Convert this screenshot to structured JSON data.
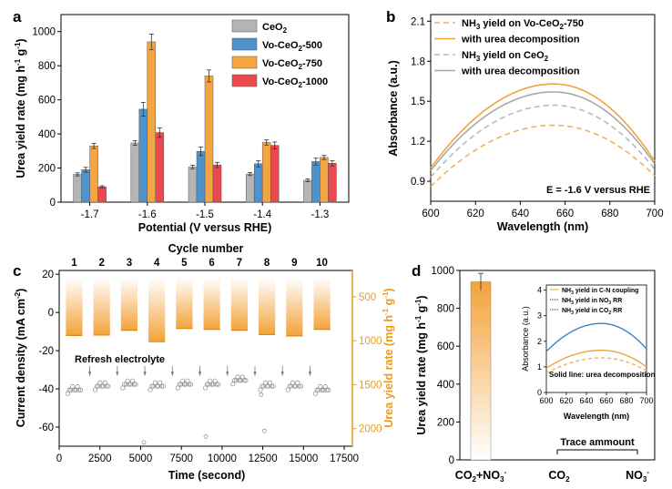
{
  "panels": {
    "a": {
      "letter": "a"
    },
    "b": {
      "letter": "b"
    },
    "c": {
      "letter": "c"
    },
    "d": {
      "letter": "d"
    }
  },
  "colors": {
    "ceo2": "#b5b5b5",
    "vo500": "#4f93cc",
    "vo750": "#f5a442",
    "vo1000": "#ea4a4d",
    "orange": "#f3a33a",
    "orange_dash": "#f0b15f",
    "gray": "#a8a8a8",
    "gray_dash": "#b9b9c4",
    "blue": "#3e82c1",
    "axis_orange": "#e99b1c"
  },
  "chart_data": [
    {
      "panel": "a",
      "type": "bar",
      "title": "",
      "xlabel": "Potential (V versus RHE)",
      "ylabel": "Urea yield rate (mg h-1 g-1)",
      "ylim": [
        0,
        1100
      ],
      "yticks": [
        "0",
        "200",
        "400",
        "600",
        "800",
        "1000"
      ],
      "categories": [
        "-1.7",
        "-1.6",
        "-1.5",
        "-1.4",
        "-1.3"
      ],
      "series": [
        {
          "name": "CeO2",
          "color_key": "ceo2",
          "values": [
            163,
            347,
            206,
            165,
            128
          ],
          "errors": [
            9,
            14,
            10,
            9,
            8
          ]
        },
        {
          "name": "Vo-CeO2-500",
          "color_key": "vo500",
          "values": [
            190,
            545,
            298,
            225,
            238
          ],
          "errors": [
            14,
            40,
            25,
            18,
            20
          ]
        },
        {
          "name": "Vo-CeO2-750",
          "color_key": "vo750",
          "values": [
            330,
            940,
            740,
            350,
            262
          ],
          "errors": [
            15,
            45,
            35,
            15,
            12
          ]
        },
        {
          "name": "Vo-CeO2-1000",
          "color_key": "vo1000",
          "values": [
            90,
            408,
            218,
            333,
            228
          ],
          "errors": [
            6,
            28,
            15,
            20,
            15
          ]
        }
      ],
      "legend": {
        "position": "top-right",
        "labels": [
          "CeO",
          "Vo-CeO",
          "Vo-CeO",
          "Vo-CeO"
        ],
        "subs": [
          "2",
          "2",
          "2",
          "2"
        ],
        "suffixes": [
          "",
          "-500",
          "-750",
          "-1000"
        ]
      }
    },
    {
      "panel": "b",
      "type": "line",
      "xlabel": "Wavelength (nm)",
      "ylabel": "Absorbance (a.u.)",
      "xlim": [
        600,
        700
      ],
      "ylim": [
        0.75,
        2.15
      ],
      "xticks": [
        "600",
        "620",
        "640",
        "660",
        "680",
        "700"
      ],
      "yticks": [
        "0.9",
        "1.2",
        "1.5",
        "1.8",
        "2.1"
      ],
      "annotation": "E = -1.6 V versus RHE",
      "series": [
        {
          "name": "NH3 yield on Vo-CeO2-750",
          "style": "dashed",
          "color_key": "orange_dash",
          "peak_x": 655,
          "peak_y": 1.32,
          "edge_left": 0.86,
          "edge_right": 0.94
        },
        {
          "name": "with urea decomposition",
          "style": "solid",
          "color_key": "orange",
          "peak_x": 655,
          "peak_y": 1.63,
          "edge_left": 1.0,
          "edge_right": 1.05
        },
        {
          "name": "NH3 yield on CeO2",
          "style": "dashed",
          "color_key": "gray_dash",
          "peak_x": 655,
          "peak_y": 1.47,
          "edge_left": 0.93,
          "edge_right": 0.99
        },
        {
          "name": "with urea decomposition",
          "style": "solid",
          "color_key": "gray",
          "peak_x": 655,
          "peak_y": 1.57,
          "edge_left": 0.98,
          "edge_right": 1.03
        }
      ],
      "legend": {
        "position": "top-left",
        "entries": [
          {
            "pre": "NH",
            "sub": "3",
            "post": " yield on Vo-CeO",
            "sub2": "2",
            "post2": "-750"
          },
          {
            "pre": "with urea decomposition",
            "sub": "",
            "post": "",
            "sub2": "",
            "post2": ""
          },
          {
            "pre": "NH",
            "sub": "3",
            "post": " yield on CeO",
            "sub2": "2",
            "post2": ""
          },
          {
            "pre": "with urea decomposition",
            "sub": "",
            "post": "",
            "sub2": "",
            "post2": ""
          }
        ]
      }
    },
    {
      "panel": "c",
      "type": "scatter",
      "top_title": "Cycle number",
      "cycle_labels": [
        "1",
        "2",
        "3",
        "4",
        "5",
        "6",
        "7",
        "8",
        "9",
        "10"
      ],
      "xlabel": "Time (second)",
      "ylabel_left": "Current density (mA cm-2)",
      "ylabel_right": "Urea yield rate (mg h-1 g-1)",
      "xlim": [
        0,
        18000
      ],
      "ylim_left": [
        -70,
        22
      ],
      "ylim_right": [
        2200,
        200
      ],
      "xticks": [
        "0",
        "2500",
        "5000",
        "7500",
        "10000",
        "12500",
        "15000",
        "17500"
      ],
      "yticks_left": [
        "-60",
        "-40",
        "-20",
        "0",
        "20"
      ],
      "yticks_right": [
        "500",
        "1000",
        "1500",
        "2000"
      ],
      "annotation": "Refresh electrolyte",
      "cycle_yields": [
        940,
        935,
        880,
        1010,
        860,
        870,
        880,
        930,
        945,
        870
      ],
      "current_baseline": [
        -40,
        -38,
        -37,
        -38,
        -37,
        -37,
        -35,
        -38,
        -38,
        -40
      ],
      "outliers": [
        [
          12400,
          -43
        ],
        [
          12600,
          -62
        ],
        [
          9000,
          -65
        ],
        [
          5200,
          -68
        ]
      ]
    },
    {
      "panel": "d",
      "type": "bar",
      "xlabel": "",
      "ylabel": "Urea yield rate (mg h-1 g-1)",
      "ylim": [
        0,
        1000
      ],
      "yticks": [
        "0",
        "200",
        "400",
        "600",
        "800",
        "1000"
      ],
      "categories": [
        "CO",
        "CO",
        "NO"
      ],
      "category_subs": [
        "2+NO",
        "2",
        "3"
      ],
      "category_sups": [
        "3-",
        "",
        "-"
      ],
      "values": [
        940,
        0,
        0
      ],
      "errors": [
        45,
        0,
        0
      ],
      "annotation": "Trace ammount",
      "inset": {
        "type": "line",
        "xlabel": "Wavelength (nm)",
        "ylabel": "Absorbance (a.u.)",
        "xlim": [
          600,
          700
        ],
        "ylim": [
          0,
          4.2
        ],
        "xticks": [
          "600",
          "620",
          "640",
          "660",
          "680",
          "700"
        ],
        "yticks": [
          "0",
          "1",
          "2",
          "3",
          "4"
        ],
        "note": "Solid line: urea decomposition",
        "legend": [
          {
            "pre": "NH",
            "sub": "3",
            "post": " yield in C-N coupling"
          },
          {
            "pre": "NH",
            "sub": "3",
            "post": " yield in NO",
            "sub2": "3",
            "post2": " RR"
          },
          {
            "pre": "NH",
            "sub": "3",
            "post": " yield in CO",
            "sub2": "2",
            "post2": " RR"
          }
        ],
        "series": [
          {
            "name": "C-N coupling dashed",
            "style": "dashed",
            "color_key": "orange_dash",
            "peak_y": 1.35,
            "edge_left": 0.75,
            "edge_right": 0.85
          },
          {
            "name": "C-N coupling solid",
            "style": "solid",
            "color_key": "orange",
            "peak_y": 1.65,
            "edge_left": 0.95,
            "edge_right": 1.0
          },
          {
            "name": "NO3RR",
            "style": "solid",
            "color_key": "blue",
            "peak_y": 2.7,
            "edge_left": 1.6,
            "edge_right": 1.7
          }
        ]
      }
    }
  ]
}
